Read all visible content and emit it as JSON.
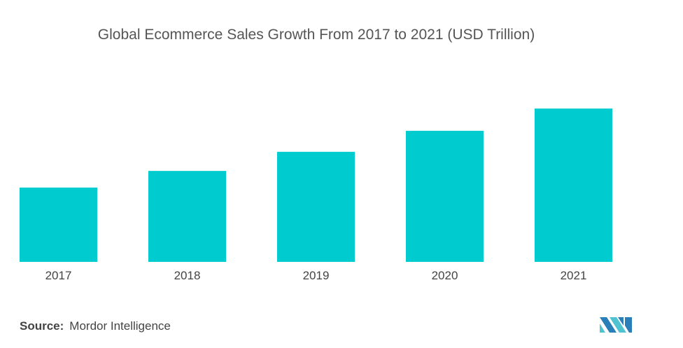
{
  "chart_data": {
    "type": "bar",
    "title": "Global Ecommerce Sales Growth From 2017 to 2021 (USD Trillion)",
    "categories": [
      "2017",
      "2018",
      "2019",
      "2020",
      "2021"
    ],
    "values": [
      2.37,
      2.9,
      3.51,
      4.18,
      4.89
    ],
    "xlabel": "",
    "ylabel": "",
    "ylim": [
      0,
      4.89
    ],
    "grid": false,
    "bar_color": "#00cccf"
  },
  "source": {
    "label": "Source:",
    "text": "Mordor Intelligence"
  },
  "logo": {
    "colors": [
      "#2a7fb8",
      "#4fc3d0"
    ]
  }
}
